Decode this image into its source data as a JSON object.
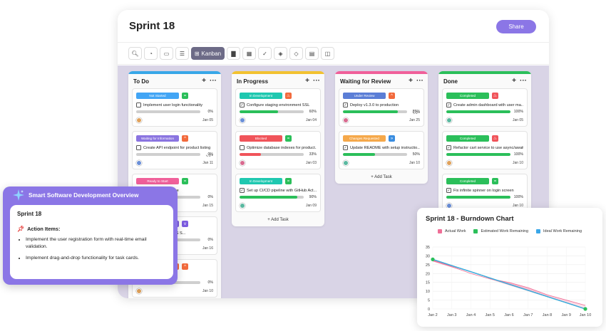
{
  "board": {
    "title": "Sprint 18",
    "share_label": "Share",
    "toolbar": {
      "kanban_label": "Kanban"
    },
    "add_task_label": "Add Task",
    "columns": [
      {
        "name": "To Do",
        "color": "#38a7e8",
        "cards": [
          {
            "badge": "Not Started",
            "badge_color": "#42a5f5",
            "priority_color": "#2bbf5a",
            "priority_icon": "equals-icon",
            "title": "Implement user login functionality",
            "progress": 0,
            "progress_label": "0%",
            "date": "Jan 05",
            "checked": false
          },
          {
            "badge": "Waiting for Information",
            "badge_color": "#8a74e0",
            "priority_color": "#f26a3c",
            "priority_icon": "chevron-up-icon",
            "title": "Create API endpoint for product listing",
            "progress": 0,
            "progress_label": "0%",
            "date": "Jan 11",
            "checked": false,
            "subtasks": "0"
          },
          {
            "badge": "Ready to Start",
            "badge_color": "#f0609a",
            "priority_color": "#2bbf5a",
            "priority_icon": "equals-icon",
            "title": "...cation middleware",
            "progress": 0,
            "progress_label": "0%",
            "date": "Jan 15",
            "checked": false
          },
          {
            "badge": "",
            "badge_color": "#7c5ce0",
            "priority_color": "#7c5ce0",
            "priority_icon": "chevron-down-icon",
            "title": "...out breaks on iOS S...",
            "progress": 0,
            "progress_label": "0%",
            "date": "Jan 16",
            "checked": false
          },
          {
            "badge": "",
            "badge_color": "#f26a3c",
            "priority_color": "#f26a3c",
            "priority_icon": "chevron-up-icon",
            "title": "...gateway (Stripe)",
            "progress": 0,
            "progress_label": "0%",
            "date": "Jan 10",
            "checked": false
          }
        ]
      },
      {
        "name": "In Progress",
        "color": "#f2c230",
        "cards": [
          {
            "badge": "In Development",
            "badge_color": "#1fc8b0",
            "priority_color": "#f26a3c",
            "priority_icon": "fire-icon",
            "title": "Configure staging environment SSL",
            "progress": 60,
            "progress_label": "60%",
            "date": "Jan 04",
            "checked": true,
            "fill_color": "#2bbf5a"
          },
          {
            "badge": "Blocked",
            "badge_color": "#f0545a",
            "priority_color": "#2bbf5a",
            "priority_icon": "equals-icon",
            "title": "Optimize database indexes for product...",
            "progress": 33,
            "progress_label": "33%",
            "date": "Jan 03",
            "checked": false,
            "fill_color": "#f0545a"
          },
          {
            "badge": "In Development",
            "badge_color": "#1fc8b0",
            "priority_color": "#2bbf5a",
            "priority_icon": "equals-icon",
            "title": "Set up CI/CD pipeline with GitHub Act...",
            "progress": 90,
            "progress_label": "90%",
            "date": "Jan 09",
            "checked": true,
            "fill_color": "#2bbf5a"
          }
        ]
      },
      {
        "name": "Waiting for Review",
        "color": "#f0609a",
        "cards": [
          {
            "badge": "Under Review",
            "badge_color": "#5b7ed6",
            "priority_color": "#f26a3c",
            "priority_icon": "chevron-up-icon",
            "title": "Deploy v1.3.0 to production",
            "progress": 85,
            "progress_label": "85%",
            "date": "Jan 25",
            "checked": true,
            "fill_color": "#2bbf5a",
            "subtasks": "0"
          },
          {
            "badge": "Changes Requested",
            "badge_color": "#f5a84a",
            "priority_color": "#3a8de0",
            "priority_icon": "double-chevron-down-icon",
            "title": "Update README with setup instructio...",
            "progress": 50,
            "progress_label": "50%",
            "date": "Jan 10",
            "checked": true,
            "fill_color": "#2bbf5a"
          }
        ]
      },
      {
        "name": "Done",
        "color": "#2bbf5a",
        "cards": [
          {
            "badge": "Completed",
            "badge_color": "#2bbf5a",
            "priority_color": "#f0545a",
            "priority_icon": "fire-icon",
            "title": "Create admin dashboard with user ma...",
            "progress": 100,
            "progress_label": "100%",
            "date": "Jan 05",
            "checked": true,
            "fill_color": "#2bbf5a"
          },
          {
            "badge": "Completed",
            "badge_color": "#2bbf5a",
            "priority_color": "#f0545a",
            "priority_icon": "fire-icon",
            "title": "Refactor cart service to use async/await",
            "progress": 100,
            "progress_label": "100%",
            "date": "Jan 10",
            "checked": true,
            "fill_color": "#2bbf5a"
          },
          {
            "badge": "Completed",
            "badge_color": "#2bbf5a",
            "priority_color": "#2bbf5a",
            "priority_icon": "equals-icon",
            "title": "Fix infinite spinner on login screen",
            "progress": 100,
            "progress_label": "100%",
            "date": "Jan 10",
            "checked": true,
            "fill_color": "#2bbf5a"
          }
        ]
      }
    ]
  },
  "ai_panel": {
    "header": "Smart Software Development Overview",
    "sprint": "Sprint 18",
    "action_heading": "Action Items:",
    "items": [
      "Implement the user registration form with real-time email validation.",
      "Implement drag-and-drop functionality for task cards."
    ]
  },
  "chart_data": {
    "type": "area",
    "title": "Sprint 18 - Burndown Chart",
    "categories": [
      "Jan 2",
      "Jan 3",
      "Jan 4",
      "Jan 5",
      "Jan 6",
      "Jan 7",
      "Jan 8",
      "Jan 9",
      "Jan 10"
    ],
    "ylim": [
      0,
      35
    ],
    "yticks": [
      0,
      5,
      10,
      15,
      20,
      25,
      30,
      35
    ],
    "legend_position": "top",
    "series": [
      {
        "name": "Actual Work",
        "color": "#ef6f97",
        "values": [
          28,
          24,
          20,
          17,
          15,
          12,
          8,
          5,
          2
        ]
      },
      {
        "name": "Estimated Work Remaining",
        "color": "#2bbf5a",
        "values": [
          28,
          24.5,
          21,
          17.5,
          14,
          10.5,
          7,
          3.5,
          0
        ]
      },
      {
        "name": "Ideal Work Remaining",
        "color": "#3aa7e8",
        "values": [
          28,
          24.5,
          21,
          17.5,
          14,
          10.5,
          7,
          3.5,
          0
        ]
      }
    ]
  }
}
